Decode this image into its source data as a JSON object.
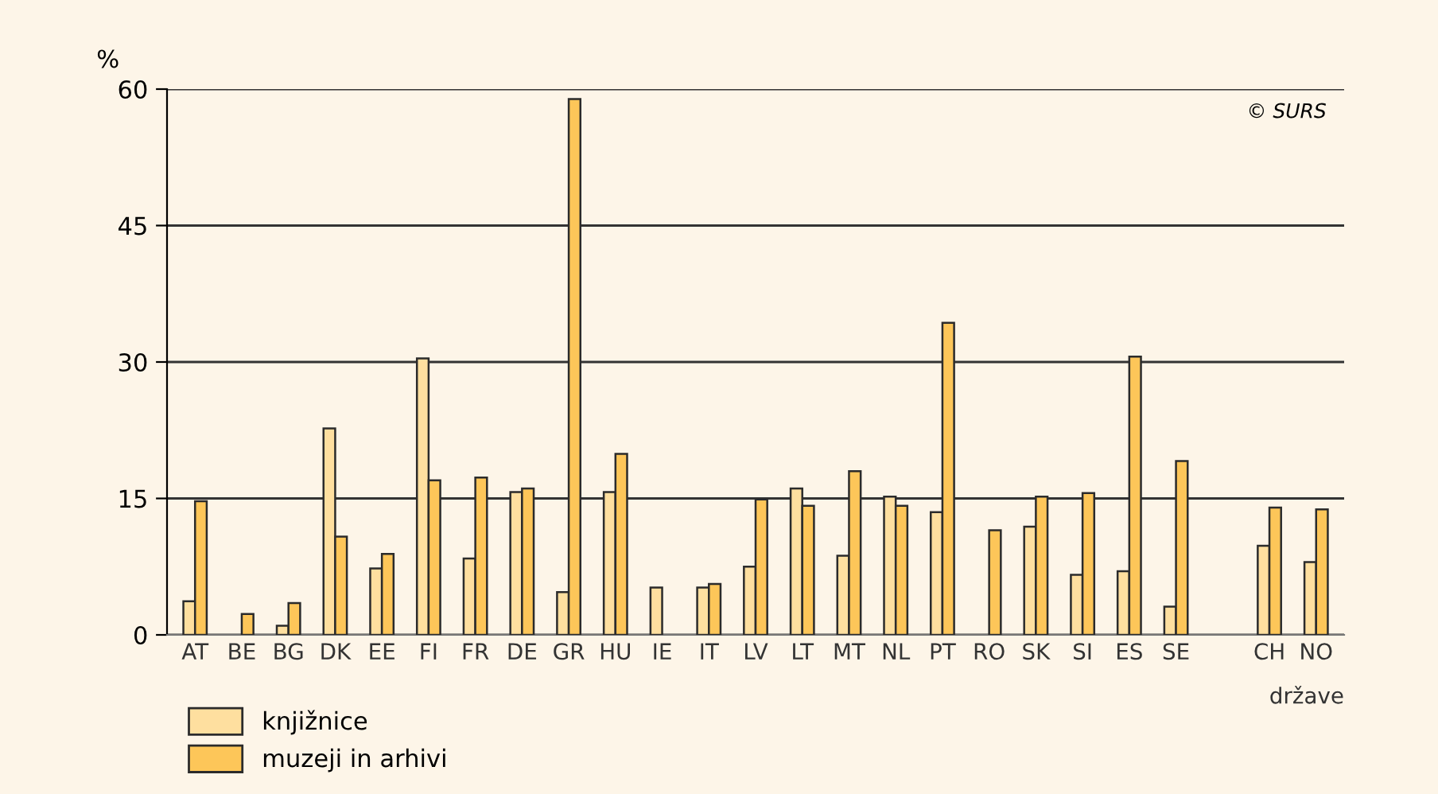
{
  "chart_data": {
    "type": "bar",
    "ylabel": "%",
    "xlabel": "države",
    "annotations": [
      "© SURS"
    ],
    "categories": [
      "AT",
      "BE",
      "BG",
      "DK",
      "EE",
      "FI",
      "FR",
      "DE",
      "GR",
      "HU",
      "IE",
      "IT",
      "LV",
      "LT",
      "MT",
      "NL",
      "PT",
      "RO",
      "SK",
      "SI",
      "ES",
      "SE",
      null,
      "CH",
      "NO"
    ],
    "series": [
      {
        "name": "knjižnice",
        "color": "#fedf9f",
        "values": [
          3.7,
          null,
          1.0,
          22.7,
          7.3,
          30.4,
          8.4,
          15.7,
          4.7,
          15.7,
          5.2,
          5.2,
          7.5,
          16.1,
          8.7,
          15.2,
          13.5,
          null,
          11.9,
          6.6,
          7.0,
          3.1,
          null,
          9.8,
          8.0
        ]
      },
      {
        "name": "muzeji in arhivi",
        "color": "#fdc659",
        "values": [
          14.7,
          2.3,
          3.5,
          10.8,
          8.9,
          17.0,
          17.3,
          16.1,
          58.9,
          19.9,
          null,
          5.6,
          14.9,
          14.2,
          18.0,
          14.2,
          34.3,
          11.5,
          15.2,
          15.6,
          30.6,
          19.1,
          null,
          14.0,
          13.8
        ]
      }
    ],
    "ylim": [
      0,
      60
    ],
    "yticks": [
      0,
      15,
      30,
      45,
      60
    ],
    "grid": "y",
    "legend": "bottom left"
  }
}
